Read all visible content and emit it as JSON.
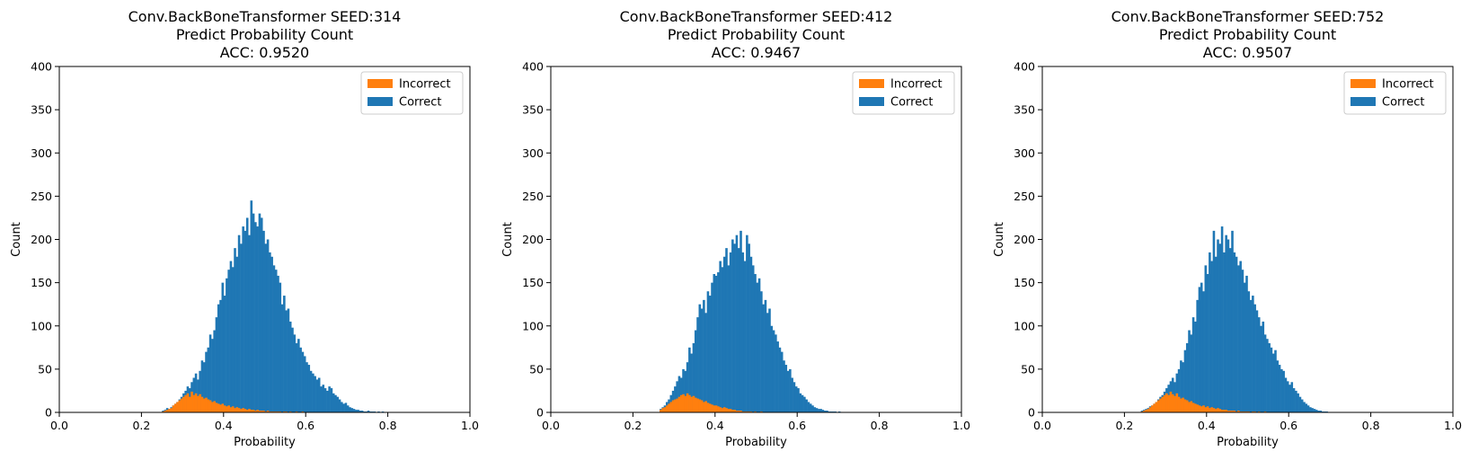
{
  "chart_data": [
    {
      "type": "bar",
      "title": [
        "Conv.BackBoneTransformer SEED:314",
        "Predict Probability Count",
        "ACC: 0.9520"
      ],
      "xlabel": "Probability",
      "ylabel": "Count",
      "xlim": [
        0.0,
        1.0
      ],
      "ylim": [
        0,
        400
      ],
      "xticks": [
        "0.0",
        "0.2",
        "0.4",
        "0.6",
        "0.8",
        "1.0"
      ],
      "yticks": [
        "0",
        "50",
        "100",
        "150",
        "200",
        "250",
        "300",
        "350",
        "400"
      ],
      "legend": {
        "position": "upper right",
        "entries": [
          "Incorrect",
          "Correct"
        ]
      },
      "series": [
        {
          "name": "Correct",
          "color": "#1f77b4",
          "bin_start": 0.25,
          "bin_width": 0.005,
          "values": [
            2,
            3,
            5,
            4,
            6,
            8,
            10,
            12,
            15,
            18,
            22,
            25,
            30,
            28,
            35,
            40,
            45,
            38,
            48,
            60,
            58,
            70,
            75,
            90,
            85,
            95,
            110,
            125,
            130,
            150,
            135,
            155,
            165,
            175,
            168,
            190,
            180,
            205,
            195,
            215,
            210,
            225,
            205,
            245,
            230,
            220,
            215,
            230,
            225,
            210,
            195,
            200,
            185,
            180,
            170,
            165,
            158,
            150,
            125,
            135,
            118,
            120,
            105,
            98,
            90,
            80,
            85,
            75,
            70,
            65,
            58,
            55,
            48,
            45,
            42,
            38,
            40,
            30,
            32,
            28,
            25,
            30,
            28,
            22,
            20,
            18,
            15,
            12,
            10,
            11,
            8,
            6,
            5,
            4,
            3,
            3,
            2,
            2,
            1,
            1,
            2,
            1,
            1,
            1,
            0,
            1,
            0,
            1,
            0,
            0
          ]
        },
        {
          "name": "Incorrect",
          "color": "#ff7f0e",
          "bin_start": 0.25,
          "bin_width": 0.005,
          "values": [
            1,
            2,
            3,
            4,
            5,
            8,
            10,
            12,
            14,
            16,
            18,
            20,
            22,
            18,
            24,
            20,
            22,
            19,
            21,
            18,
            16,
            17,
            15,
            14,
            12,
            13,
            11,
            10,
            9,
            10,
            8,
            7,
            8,
            6,
            7,
            5,
            6,
            5,
            4,
            5,
            4,
            3,
            4,
            3,
            3,
            2,
            3,
            2,
            2,
            2,
            1,
            2,
            1,
            1,
            1,
            1,
            1,
            1,
            0,
            1,
            1,
            0,
            1,
            0,
            0,
            1,
            0,
            0,
            1,
            0
          ]
        }
      ]
    },
    {
      "type": "bar",
      "title": [
        "Conv.BackBoneTransformer SEED:412",
        "Predict Probability Count",
        "ACC: 0.9467"
      ],
      "xlabel": "Probability",
      "ylabel": "Count",
      "xlim": [
        0.0,
        1.0
      ],
      "ylim": [
        0,
        400
      ],
      "xticks": [
        "0.0",
        "0.2",
        "0.4",
        "0.6",
        "0.8",
        "1.0"
      ],
      "yticks": [
        "0",
        "50",
        "100",
        "150",
        "200",
        "250",
        "300",
        "350",
        "400"
      ],
      "legend": {
        "position": "upper right",
        "entries": [
          "Incorrect",
          "Correct"
        ]
      },
      "series": [
        {
          "name": "Correct",
          "color": "#1f77b4",
          "bin_start": 0.265,
          "bin_width": 0.005,
          "values": [
            4,
            6,
            8,
            12,
            15,
            20,
            25,
            30,
            36,
            42,
            40,
            50,
            48,
            58,
            75,
            68,
            80,
            95,
            110,
            125,
            120,
            130,
            115,
            140,
            135,
            150,
            160,
            158,
            162,
            175,
            168,
            180,
            190,
            170,
            185,
            200,
            195,
            205,
            190,
            210,
            185,
            175,
            205,
            195,
            180,
            170,
            160,
            150,
            155,
            140,
            125,
            130,
            115,
            120,
            100,
            95,
            90,
            82,
            75,
            70,
            60,
            55,
            48,
            50,
            40,
            35,
            30,
            28,
            22,
            20,
            18,
            15,
            12,
            10,
            8,
            6,
            5,
            4,
            4,
            3,
            2,
            2,
            1,
            1,
            1,
            1,
            0,
            1
          ]
        },
        {
          "name": "Incorrect",
          "color": "#ff7f0e",
          "bin_start": 0.265,
          "bin_width": 0.005,
          "values": [
            3,
            5,
            6,
            8,
            10,
            12,
            14,
            15,
            16,
            18,
            20,
            21,
            19,
            22,
            20,
            18,
            19,
            17,
            16,
            15,
            14,
            12,
            13,
            11,
            10,
            9,
            8,
            8,
            7,
            6,
            5,
            6,
            5,
            4,
            4,
            3,
            3,
            2,
            2,
            2,
            1,
            1,
            1,
            1,
            1,
            0,
            1,
            0,
            0,
            1
          ]
        }
      ]
    },
    {
      "type": "bar",
      "title": [
        "Conv.BackBoneTransformer SEED:752",
        "Predict Probability Count",
        "ACC: 0.9507"
      ],
      "xlabel": "Probability",
      "ylabel": "Count",
      "xlim": [
        0.0,
        1.0
      ],
      "ylim": [
        0,
        400
      ],
      "xticks": [
        "0.0",
        "0.2",
        "0.4",
        "0.6",
        "0.8",
        "1.0"
      ],
      "yticks": [
        "0",
        "50",
        "100",
        "150",
        "200",
        "250",
        "300",
        "350",
        "400"
      ],
      "legend": {
        "position": "upper right",
        "entries": [
          "Incorrect",
          "Correct"
        ]
      },
      "series": [
        {
          "name": "Correct",
          "color": "#1f77b4",
          "bin_start": 0.24,
          "bin_width": 0.005,
          "values": [
            2,
            3,
            4,
            5,
            7,
            8,
            10,
            12,
            15,
            18,
            20,
            24,
            28,
            32,
            36,
            40,
            35,
            45,
            50,
            60,
            58,
            72,
            80,
            95,
            90,
            110,
            105,
            130,
            145,
            150,
            140,
            170,
            160,
            185,
            175,
            210,
            180,
            200,
            195,
            215,
            185,
            205,
            200,
            190,
            210,
            185,
            180,
            170,
            175,
            165,
            150,
            158,
            140,
            130,
            135,
            125,
            118,
            110,
            100,
            105,
            90,
            85,
            80,
            75,
            68,
            72,
            60,
            55,
            50,
            48,
            40,
            36,
            32,
            35,
            28,
            25,
            22,
            18,
            15,
            12,
            10,
            8,
            6,
            5,
            4,
            3,
            2,
            2,
            1,
            1,
            1
          ]
        },
        {
          "name": "Incorrect",
          "color": "#ff7f0e",
          "bin_start": 0.24,
          "bin_width": 0.005,
          "values": [
            1,
            2,
            3,
            4,
            6,
            8,
            10,
            12,
            14,
            16,
            18,
            20,
            22,
            20,
            24,
            21,
            19,
            22,
            18,
            16,
            17,
            15,
            14,
            12,
            13,
            11,
            10,
            9,
            8,
            7,
            8,
            6,
            7,
            5,
            6,
            5,
            4,
            5,
            4,
            3,
            3,
            3,
            2,
            2,
            2,
            2,
            1,
            2,
            1,
            1,
            1,
            1,
            1,
            0,
            1,
            1,
            0,
            1,
            0,
            0,
            1
          ]
        }
      ]
    }
  ]
}
